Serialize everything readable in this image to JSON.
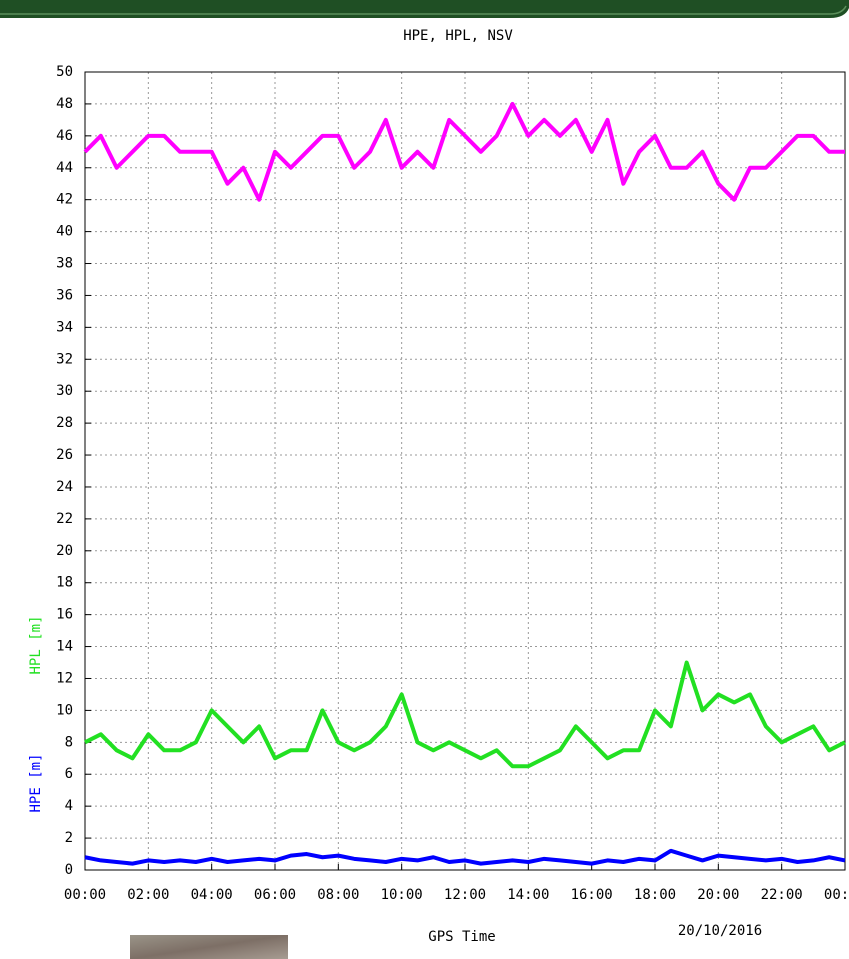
{
  "chart_data": {
    "type": "line",
    "title": "HPE, HPL, NSV",
    "x_label": "GPS Time",
    "date_label": "20/10/2016",
    "x": [
      0,
      0.5,
      1,
      1.5,
      2,
      2.5,
      3,
      3.5,
      4,
      4.5,
      5,
      5.5,
      6,
      6.5,
      7,
      7.5,
      8,
      8.5,
      9,
      9.5,
      10,
      10.5,
      11,
      11.5,
      12,
      12.5,
      13,
      13.5,
      14,
      14.5,
      15,
      15.5,
      16,
      16.5,
      17,
      17.5,
      18,
      18.5,
      19,
      19.5,
      20,
      20.5,
      21,
      21.5,
      22,
      22.5,
      23,
      23.5,
      24
    ],
    "series": [
      {
        "color": "#ff00ff",
        "values": [
          45,
          46,
          44,
          45,
          46,
          46,
          45,
          45,
          45,
          43,
          44,
          42,
          45,
          44,
          45,
          46,
          46,
          44,
          45,
          47,
          44,
          45,
          44,
          47,
          46,
          45,
          46,
          48,
          46,
          47,
          46,
          47,
          45,
          47,
          43,
          45,
          46,
          44,
          44,
          45,
          43,
          42,
          44,
          44,
          45,
          46,
          46,
          45,
          45
        ]
      },
      {
        "name": "HPL [m]",
        "color": "#22e022",
        "values": [
          8,
          8.5,
          7.5,
          7,
          8.5,
          7.5,
          7.5,
          8,
          10,
          9,
          8,
          9,
          7,
          7.5,
          7.5,
          10,
          8,
          7.5,
          8,
          9,
          11,
          8,
          7.5,
          8,
          7.5,
          7,
          7.5,
          6.5,
          6.5,
          7,
          7.5,
          9,
          8,
          7,
          7.5,
          7.5,
          10,
          9,
          13,
          10,
          11,
          10.5,
          11,
          9,
          8,
          8.5,
          9,
          7.5,
          8
        ]
      },
      {
        "name": "HPE [m]",
        "color": "#0000ff",
        "values": [
          0.8,
          0.6,
          0.5,
          0.4,
          0.6,
          0.5,
          0.6,
          0.5,
          0.7,
          0.5,
          0.6,
          0.7,
          0.6,
          0.9,
          1.0,
          0.8,
          0.9,
          0.7,
          0.6,
          0.5,
          0.7,
          0.6,
          0.8,
          0.5,
          0.6,
          0.4,
          0.5,
          0.6,
          0.5,
          0.7,
          0.6,
          0.5,
          0.4,
          0.6,
          0.5,
          0.7,
          0.6,
          1.2,
          0.9,
          0.6,
          0.9,
          0.8,
          0.7,
          0.6,
          0.7,
          0.5,
          0.6,
          0.8,
          0.6
        ]
      }
    ],
    "xlim": [
      0,
      24
    ],
    "xticks": [
      {
        "value": 0,
        "label": "00:00"
      },
      {
        "value": 2,
        "label": "02:00"
      },
      {
        "value": 4,
        "label": "04:00"
      },
      {
        "value": 6,
        "label": "06:00"
      },
      {
        "value": 8,
        "label": "08:00"
      },
      {
        "value": 10,
        "label": "10:00"
      },
      {
        "value": 12,
        "label": "12:00"
      },
      {
        "value": 14,
        "label": "14:00"
      },
      {
        "value": 16,
        "label": "16:00"
      },
      {
        "value": 18,
        "label": "18:00"
      },
      {
        "value": 20,
        "label": "20:00"
      },
      {
        "value": 22,
        "label": "22:00"
      },
      {
        "value": 24,
        "label": "00:00"
      }
    ],
    "ylim": [
      0,
      50
    ],
    "yticks": [
      0,
      2,
      4,
      6,
      8,
      10,
      12,
      14,
      16,
      18,
      20,
      22,
      24,
      26,
      28,
      30,
      32,
      34,
      36,
      38,
      40,
      42,
      44,
      46,
      48,
      50
    ],
    "grid": true
  }
}
